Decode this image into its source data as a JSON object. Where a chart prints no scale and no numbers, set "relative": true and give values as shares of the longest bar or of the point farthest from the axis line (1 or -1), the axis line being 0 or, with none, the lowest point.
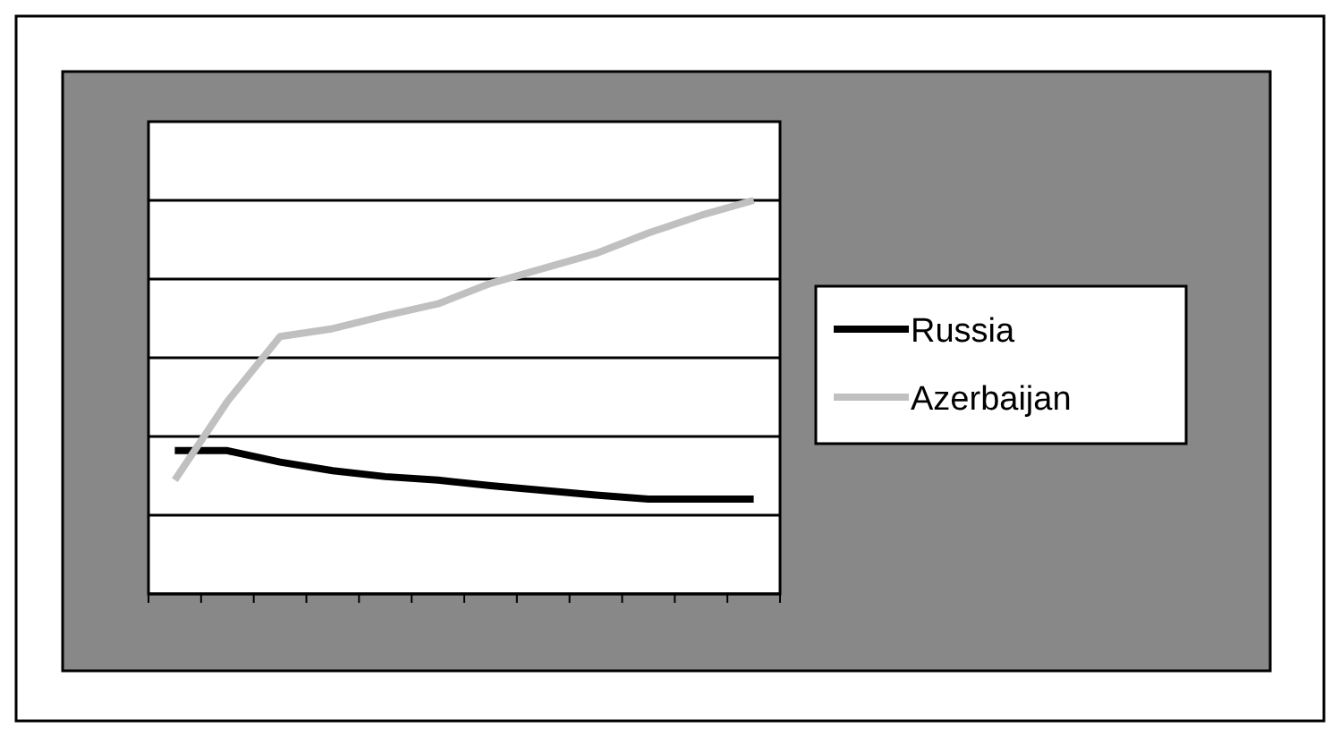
{
  "chart_data": {
    "type": "line",
    "relative": true,
    "categories": [
      null,
      null,
      null,
      null,
      null,
      null,
      null,
      null,
      null,
      null,
      null,
      null
    ],
    "series": [
      {
        "name": "Russia",
        "color": "#000000",
        "values": [
          0.364,
          0.364,
          0.335,
          0.313,
          0.298,
          0.289,
          0.275,
          0.263,
          0.251,
          0.241,
          0.241,
          0.241
        ]
      },
      {
        "name": "Azerbaijan",
        "color": "#c0c0c0",
        "values": [
          0.289,
          0.489,
          0.654,
          0.674,
          0.707,
          0.737,
          0.789,
          0.827,
          0.865,
          0.917,
          0.962,
          1
        ]
      }
    ],
    "grid": true,
    "legend": "right",
    "marker": "none",
    "line_style": "solid"
  }
}
